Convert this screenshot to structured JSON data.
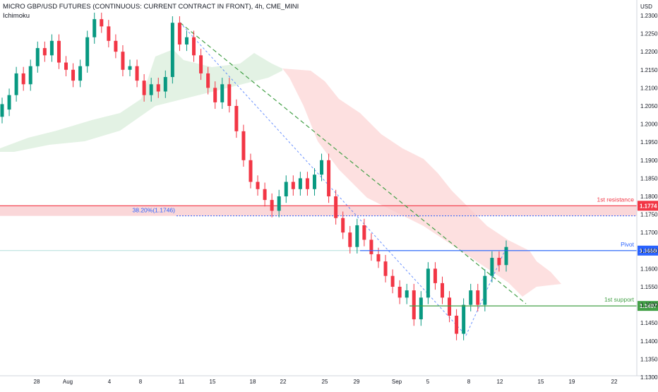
{
  "header": {
    "title": "MICRO GBP/USD FUTURES (CONTINUOUS: CURRENT CONTRACT IN FRONT), 4h, CME_MINI",
    "indicator": "Ichimoku"
  },
  "colors": {
    "up": "#089981",
    "down": "#f23645",
    "resistance": "#f23645",
    "pivot": "#2962ff",
    "support": "#43a047",
    "cloud_bull": "#e3f2e4",
    "cloud_bear": "#fde0e0",
    "trendline": "#43a047",
    "fib": "#2962ff"
  },
  "levels": {
    "resistance": {
      "label": "1st resistance",
      "value": "1.1774"
    },
    "pivot": {
      "label": "Pivot",
      "value": "1.1650"
    },
    "support": {
      "label": "1st support",
      "value": "1.1497"
    },
    "fib": {
      "label": "38.20%(1.1746)",
      "value": 1.1746
    }
  },
  "chart_data": {
    "type": "candlestick",
    "title": "MICRO GBP/USD FUTURES (CONTINUOUS: CURRENT CONTRACT IN FRONT), 4h, CME_MINI",
    "ylabel": "USD",
    "ylim": [
      1.1295,
      1.2325
    ],
    "y_ticks": [
      "1.2300",
      "1.2250",
      "1.2200",
      "1.2150",
      "1.2100",
      "1.2050",
      "1.2000",
      "1.1950",
      "1.1900",
      "1.1850",
      "1.1800",
      "1.1750",
      "1.1700",
      "1.1650",
      "1.1600",
      "1.1550",
      "1.1500",
      "1.1450",
      "1.1400",
      "1.1350",
      "1.1300"
    ],
    "x_ticks": [
      "28",
      "Aug",
      "4",
      "8",
      "11",
      "15",
      "18",
      "22",
      "25",
      "29",
      "Sep",
      "5",
      "8",
      "12",
      "15",
      "19",
      "22"
    ],
    "close_path": [
      [
        1.202,
        1.2055
      ],
      [
        1.204,
        1.208
      ],
      [
        1.208,
        1.214
      ],
      [
        1.214,
        1.211
      ],
      [
        1.211,
        1.216
      ],
      [
        1.216,
        1.221
      ],
      [
        1.221,
        1.219
      ],
      [
        1.219,
        1.223
      ],
      [
        1.223,
        1.217
      ],
      [
        1.217,
        1.215
      ],
      [
        1.215,
        1.212
      ],
      [
        1.212,
        1.216
      ],
      [
        1.216,
        1.224
      ],
      [
        1.224,
        1.229
      ],
      [
        1.229,
        1.227
      ],
      [
        1.227,
        1.223
      ],
      [
        1.223,
        1.22
      ],
      [
        1.22,
        1.215
      ],
      [
        1.215,
        1.216
      ],
      [
        1.216,
        1.212
      ],
      [
        1.212,
        1.208
      ],
      [
        1.208,
        1.211
      ],
      [
        1.211,
        1.209
      ],
      [
        1.209,
        1.213
      ],
      [
        1.213,
        1.228
      ],
      [
        1.228,
        1.222
      ],
      [
        1.222,
        1.224
      ],
      [
        1.224,
        1.219
      ],
      [
        1.219,
        1.214
      ],
      [
        1.214,
        1.21
      ],
      [
        1.21,
        1.206
      ],
      [
        1.206,
        1.211
      ],
      [
        1.211,
        1.205
      ],
      [
        1.205,
        1.198
      ],
      [
        1.198,
        1.19
      ],
      [
        1.19,
        1.184
      ],
      [
        1.184,
        1.182
      ],
      [
        1.182,
        1.179
      ],
      [
        1.179,
        1.176
      ],
      [
        1.176,
        1.18
      ],
      [
        1.18,
        1.184
      ],
      [
        1.184,
        1.182
      ],
      [
        1.182,
        1.185
      ],
      [
        1.185,
        1.182
      ],
      [
        1.182,
        1.186
      ],
      [
        1.186,
        1.19
      ],
      [
        1.19,
        1.18
      ],
      [
        1.18,
        1.174
      ],
      [
        1.174,
        1.17
      ],
      [
        1.17,
        1.166
      ],
      [
        1.166,
        1.172
      ],
      [
        1.172,
        1.168
      ],
      [
        1.168,
        1.164
      ],
      [
        1.164,
        1.162
      ],
      [
        1.162,
        1.158
      ],
      [
        1.158,
        1.155
      ],
      [
        1.155,
        1.152
      ],
      [
        1.152,
        1.154
      ],
      [
        1.154,
        1.146
      ],
      [
        1.146,
        1.152
      ],
      [
        1.152,
        1.16
      ],
      [
        1.16,
        1.156
      ],
      [
        1.156,
        1.152
      ],
      [
        1.152,
        1.147
      ],
      [
        1.147,
        1.142
      ],
      [
        1.142,
        1.15
      ],
      [
        1.15,
        1.154
      ],
      [
        1.154,
        1.15
      ],
      [
        1.15,
        1.158
      ],
      [
        1.158,
        1.163
      ],
      [
        1.163,
        1.161
      ],
      [
        1.161,
        1.166
      ]
    ]
  }
}
